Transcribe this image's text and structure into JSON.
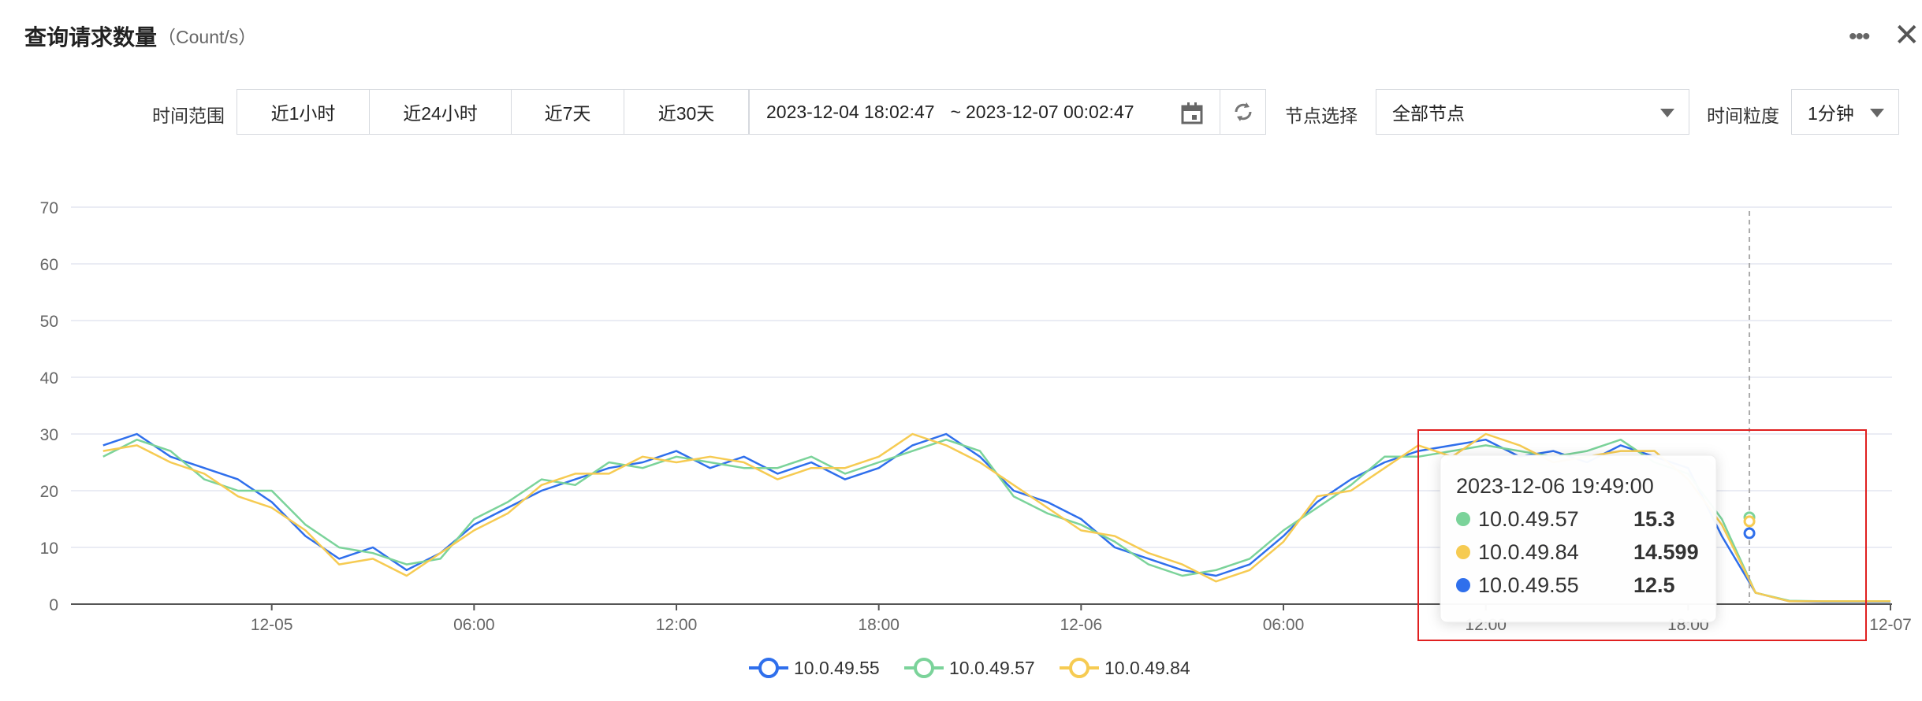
{
  "header": {
    "title": "查询请求数量",
    "unit": "（Count/s）"
  },
  "toolbar": {
    "range_label": "时间范围",
    "buttons": [
      "近1小时",
      "近24小时",
      "近7天",
      "近30天"
    ],
    "range_start": "2023-12-04 18:02:47",
    "range_sep": "~",
    "range_end": "2023-12-07 00:02:47",
    "node_label": "节点选择",
    "node_value": "全部节点",
    "granularity_label": "时间粒度",
    "granularity_value": "1分钟"
  },
  "chart_data": {
    "type": "line",
    "x": [
      "2023-12-04 19:00",
      "2023-12-04 20:00",
      "2023-12-04 21:00",
      "2023-12-04 22:00",
      "2023-12-04 23:00",
      "2023-12-05 00:00",
      "2023-12-05 01:00",
      "2023-12-05 02:00",
      "2023-12-05 03:00",
      "2023-12-05 04:00",
      "2023-12-05 05:00",
      "2023-12-05 06:00",
      "2023-12-05 07:00",
      "2023-12-05 08:00",
      "2023-12-05 09:00",
      "2023-12-05 10:00",
      "2023-12-05 11:00",
      "2023-12-05 12:00",
      "2023-12-05 13:00",
      "2023-12-05 14:00",
      "2023-12-05 15:00",
      "2023-12-05 16:00",
      "2023-12-05 17:00",
      "2023-12-05 18:00",
      "2023-12-05 19:00",
      "2023-12-05 20:00",
      "2023-12-05 21:00",
      "2023-12-05 22:00",
      "2023-12-05 23:00",
      "2023-12-06 00:00",
      "2023-12-06 01:00",
      "2023-12-06 02:00",
      "2023-12-06 03:00",
      "2023-12-06 04:00",
      "2023-12-06 05:00",
      "2023-12-06 06:00",
      "2023-12-06 07:00",
      "2023-12-06 08:00",
      "2023-12-06 09:00",
      "2023-12-06 10:00",
      "2023-12-06 11:00",
      "2023-12-06 12:00",
      "2023-12-06 13:00",
      "2023-12-06 14:00",
      "2023-12-06 15:00",
      "2023-12-06 16:00",
      "2023-12-06 17:00",
      "2023-12-06 18:00",
      "2023-12-06 19:00",
      "2023-12-06 20:00",
      "2023-12-06 21:00",
      "2023-12-06 22:00",
      "2023-12-06 23:00",
      "2023-12-07 00:00"
    ],
    "series": [
      {
        "name": "10.0.49.55",
        "color": "#2f6fec",
        "values": [
          28,
          30,
          26,
          24,
          22,
          18,
          12,
          8,
          10,
          6,
          9,
          14,
          17,
          20,
          22,
          24,
          25,
          27,
          24,
          26,
          23,
          25,
          22,
          24,
          28,
          30,
          26,
          20,
          18,
          15,
          10,
          8,
          6,
          5,
          7,
          12,
          18,
          22,
          25,
          27,
          28,
          29,
          26,
          27,
          25,
          28,
          26,
          24,
          12,
          2,
          0.5,
          0.4,
          0.4,
          0.4
        ]
      },
      {
        "name": "10.0.49.57",
        "color": "#7bd39a",
        "values": [
          26,
          29,
          27,
          22,
          20,
          20,
          14,
          10,
          9,
          7,
          8,
          15,
          18,
          22,
          21,
          25,
          24,
          26,
          25,
          24,
          24,
          26,
          23,
          25,
          27,
          29,
          27,
          19,
          16,
          14,
          11,
          7,
          5,
          6,
          8,
          13,
          17,
          21,
          26,
          26,
          27,
          28,
          27,
          26,
          27,
          29,
          25,
          23,
          15,
          2,
          0.6,
          0.5,
          0.5,
          0.5
        ]
      },
      {
        "name": "10.0.49.84",
        "color": "#f6cb52",
        "values": [
          27,
          28,
          25,
          23,
          19,
          17,
          13,
          7,
          8,
          5,
          9,
          13,
          16,
          21,
          23,
          23,
          26,
          25,
          26,
          25,
          22,
          24,
          24,
          26,
          30,
          28,
          25,
          21,
          17,
          13,
          12,
          9,
          7,
          4,
          6,
          11,
          19,
          20,
          24,
          28,
          26,
          30,
          28,
          25,
          26,
          27,
          27,
          22,
          14,
          2,
          0.5,
          0.5,
          0.5,
          0.5
        ]
      }
    ],
    "xlim": [
      "2023-12-04 18:02:47",
      "2023-12-07 00:02:47"
    ],
    "xticks": [
      {
        "value": "2023-12-05 00:00",
        "label": "12-05"
      },
      {
        "value": "2023-12-05 06:00",
        "label": "06:00"
      },
      {
        "value": "2023-12-05 12:00",
        "label": "12:00"
      },
      {
        "value": "2023-12-05 18:00",
        "label": "18:00"
      },
      {
        "value": "2023-12-06 00:00",
        "label": "12-06"
      },
      {
        "value": "2023-12-06 06:00",
        "label": "06:00"
      },
      {
        "value": "2023-12-06 12:00",
        "label": "12:00"
      },
      {
        "value": "2023-12-06 18:00",
        "label": "18:00"
      },
      {
        "value": "2023-12-07 00:00",
        "label": "12-07"
      }
    ],
    "ylim": [
      0,
      70
    ],
    "yticks": [
      0,
      10,
      20,
      30,
      40,
      50,
      60,
      70
    ],
    "grid": true,
    "tooltip": {
      "time": "2023-12-06 19:49:00",
      "items": [
        {
          "name": "10.0.49.57",
          "value": 15.3,
          "color": "#7bd39a"
        },
        {
          "name": "10.0.49.84",
          "value": 14.599,
          "color": "#f6cb52"
        },
        {
          "name": "10.0.49.55",
          "value": 12.5,
          "color": "#2f6fec"
        }
      ]
    }
  }
}
